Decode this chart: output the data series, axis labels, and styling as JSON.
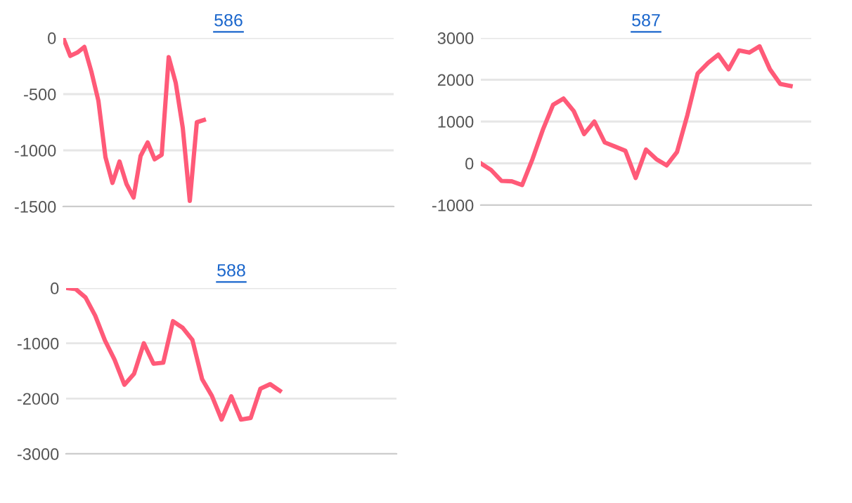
{
  "chart_data": [
    {
      "type": "line",
      "title": "586",
      "categories": [
        null,
        null,
        null,
        null,
        null,
        null,
        null,
        null,
        null,
        null,
        null,
        null,
        null,
        null,
        null,
        null,
        null,
        null,
        null,
        null,
        null,
        null,
        null,
        null,
        null,
        null,
        null,
        null,
        null,
        null,
        null,
        null,
        null,
        null,
        null,
        null,
        null,
        null,
        null,
        null,
        null,
        null,
        null,
        null,
        null,
        null,
        null,
        null
      ],
      "series": [
        {
          "color": "#ff5a78",
          "values": [
            0,
            -160,
            -130,
            -80,
            -300,
            -560,
            -1060,
            -1290,
            -1100,
            -1300,
            -1420,
            -1050,
            -930,
            -1080,
            -1040,
            -170,
            -400,
            -800,
            -1450,
            -750,
            -730,
            null,
            null,
            null,
            null,
            null,
            null,
            null,
            null,
            null,
            null,
            null,
            null,
            null,
            null,
            null,
            null,
            null,
            null,
            null,
            null,
            null,
            null,
            null,
            null,
            null,
            null,
            null
          ]
        }
      ],
      "ylim": [
        -1500,
        0
      ],
      "yticks": [
        -1500,
        -1000,
        -500,
        0
      ],
      "grid": "y",
      "tick_labels": "y",
      "marker": "none",
      "line_style": "solid",
      "legend": false
    },
    {
      "type": "line",
      "title": "587",
      "categories": [
        null,
        null,
        null,
        null,
        null,
        null,
        null,
        null,
        null,
        null,
        null,
        null,
        null,
        null,
        null,
        null,
        null,
        null,
        null,
        null,
        null,
        null,
        null,
        null,
        null,
        null,
        null,
        null,
        null,
        null,
        null,
        null,
        null
      ],
      "series": [
        {
          "color": "#ff5a78",
          "values": [
            0,
            -160,
            -420,
            -430,
            -520,
            100,
            800,
            1400,
            1550,
            1250,
            700,
            1000,
            500,
            400,
            300,
            -350,
            330,
            100,
            -50,
            270,
            1150,
            2150,
            2400,
            2600,
            2250,
            2700,
            2650,
            2800,
            2250,
            1900,
            1850,
            null,
            null
          ]
        }
      ],
      "ylim": [
        -1000,
        3000
      ],
      "yticks": [
        -1000,
        0,
        1000,
        2000,
        3000
      ],
      "grid": "y",
      "tick_labels": "y",
      "marker": "none",
      "line_style": "solid",
      "legend": false
    },
    {
      "type": "line",
      "title": "588",
      "categories": [
        null,
        null,
        null,
        null,
        null,
        null,
        null,
        null,
        null,
        null,
        null,
        null,
        null,
        null,
        null,
        null,
        null,
        null,
        null,
        null,
        null,
        null,
        null,
        null,
        null,
        null,
        null,
        null,
        null,
        null,
        null,
        null,
        null,
        null,
        null
      ],
      "series": [
        {
          "color": "#ff5a78",
          "values": [
            0,
            -20,
            -170,
            -500,
            -950,
            -1300,
            -1750,
            -1550,
            -1000,
            -1370,
            -1350,
            -600,
            -720,
            -940,
            -1650,
            -1950,
            -2380,
            -1960,
            -2380,
            -2350,
            -1820,
            -1740,
            -1860,
            null,
            null,
            null,
            null,
            null,
            null,
            null,
            null,
            null,
            null,
            null,
            null
          ]
        }
      ],
      "ylim": [
        -3000,
        0
      ],
      "yticks": [
        -3000,
        -2000,
        -1000,
        0
      ],
      "grid": "y",
      "tick_labels": "y",
      "marker": "none",
      "line_style": "solid",
      "legend": false
    }
  ]
}
